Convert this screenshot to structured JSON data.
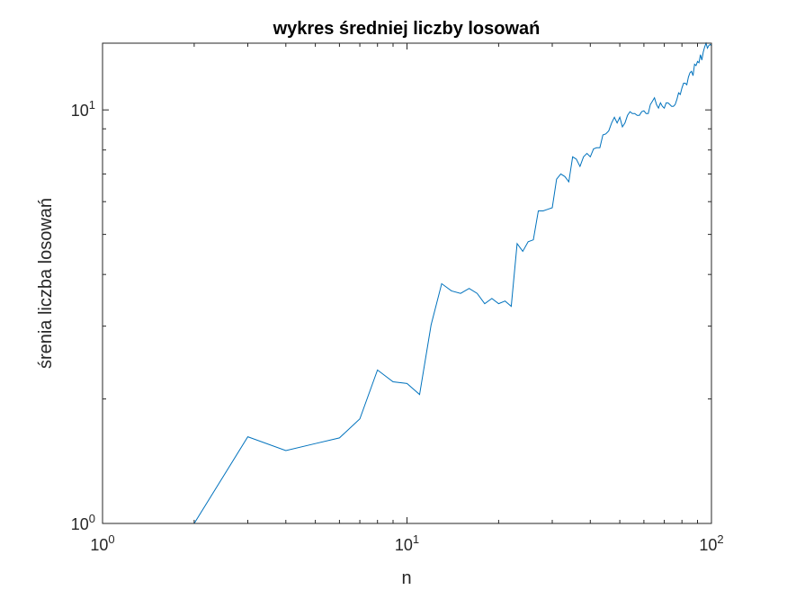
{
  "chart_data": {
    "type": "line",
    "title": "wykres średniej liczby losowań",
    "xlabel": "n",
    "ylabel": "śrenia liczba losowań",
    "xscale": "log",
    "yscale": "log",
    "xlim": [
      1,
      100
    ],
    "ylim": [
      1,
      14.5
    ],
    "grid": false,
    "x_ticks": [
      {
        "base": "10",
        "exp": "0"
      },
      {
        "base": "10",
        "exp": "1"
      },
      {
        "base": "10",
        "exp": "2"
      }
    ],
    "y_ticks": [
      {
        "base": "10",
        "exp": "0"
      },
      {
        "base": "10",
        "exp": "1"
      }
    ],
    "line_color": "#0072BD",
    "series": [
      {
        "x": [
          1,
          2,
          3,
          4,
          5,
          6,
          7,
          8,
          9,
          10,
          11,
          12,
          13,
          14,
          15,
          16,
          17,
          18,
          19,
          20,
          21,
          22,
          23,
          24,
          25,
          26,
          27,
          28,
          29,
          30,
          31,
          32,
          33,
          34,
          35,
          36,
          37,
          38,
          39,
          40,
          41,
          42,
          43,
          44,
          45,
          46,
          47,
          48,
          49,
          50,
          51,
          52,
          53,
          54,
          55,
          56,
          57,
          58,
          59,
          60,
          61,
          62,
          63,
          64,
          65,
          66,
          67,
          68,
          69,
          70,
          71,
          72,
          73,
          74,
          75,
          76,
          77,
          78,
          79,
          80,
          81,
          82,
          83,
          84,
          85,
          86,
          87,
          88,
          89,
          90,
          91,
          92,
          93,
          94,
          95,
          96,
          97,
          98,
          99,
          100
        ],
        "y": [
          1.0,
          1.0,
          1.62,
          1.5,
          1.56,
          1.61,
          1.79,
          2.35,
          2.2,
          2.18,
          2.05,
          3.02,
          3.8,
          3.65,
          3.6,
          3.7,
          3.6,
          3.4,
          3.5,
          3.4,
          3.45,
          3.35,
          4.75,
          4.55,
          4.8,
          4.85,
          5.7,
          5.7,
          5.75,
          5.8,
          6.8,
          7.0,
          6.9,
          6.7,
          7.7,
          7.6,
          7.3,
          7.7,
          7.85,
          7.7,
          8.05,
          8.1,
          8.1,
          8.7,
          8.75,
          8.9,
          9.3,
          9.6,
          9.3,
          9.6,
          9.1,
          9.3,
          9.7,
          9.9,
          9.8,
          9.8,
          9.7,
          9.7,
          9.9,
          9.95,
          9.8,
          9.8,
          10.3,
          10.5,
          10.7,
          10.3,
          10.1,
          10.4,
          10.2,
          10.1,
          10.4,
          10.4,
          10.3,
          10.2,
          10.2,
          10.3,
          10.6,
          11.0,
          10.9,
          11.3,
          11.6,
          11.6,
          11.5,
          12.0,
          12.3,
          12.4,
          12.1,
          12.9,
          12.8,
          13.1,
          13.0,
          13.6,
          13.2,
          13.8,
          14.2,
          14.5,
          14.1,
          14.3,
          14.4,
          14.3
        ]
      }
    ]
  }
}
